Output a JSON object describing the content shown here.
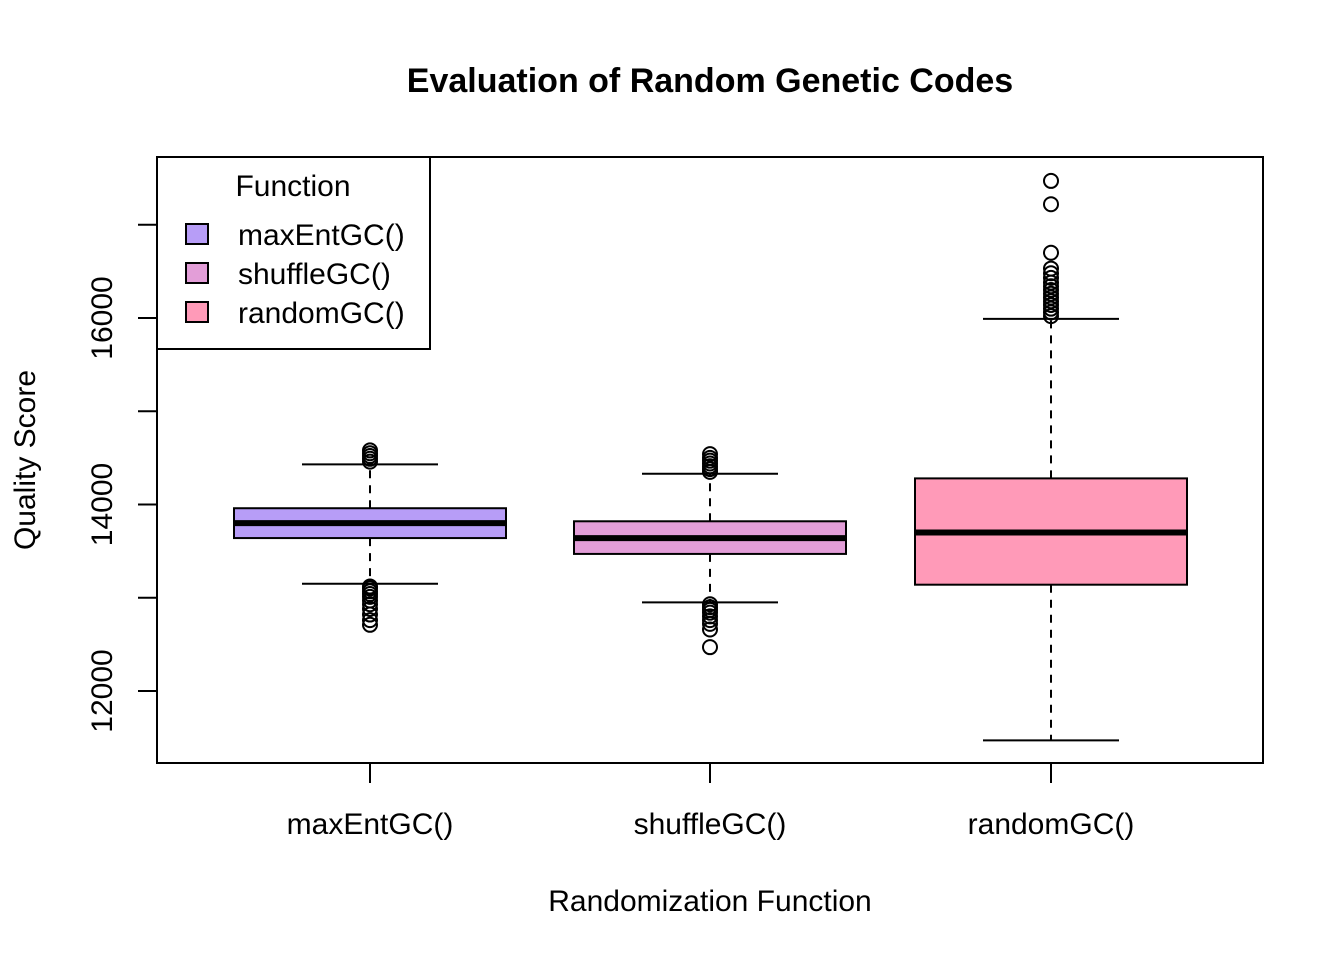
{
  "chart_data": {
    "type": "box",
    "title": "Evaluation of Random Genetic Codes",
    "xlabel": "Randomization Function",
    "ylabel": "Quality Score",
    "categories": [
      "maxEntGC()",
      "shuffleGC()",
      "randomGC()"
    ],
    "y_ticks": [
      12000,
      14000,
      16000
    ],
    "y_tick_labels": [
      "12000",
      "14000",
      "16000"
    ],
    "ylim": [
      11300,
      16800
    ],
    "grid": false,
    "legend": {
      "title": "Function",
      "placement": "top-left",
      "entries": [
        "maxEntGC()",
        "shuffleGC()",
        "randomGC()"
      ]
    },
    "series": [
      {
        "name": "maxEntGC()",
        "color": "#b79df7",
        "stats": {
          "whisker_low": 13150,
          "q1": 13640,
          "median": 13800,
          "q3": 13960,
          "whisker_high": 14430
        },
        "outliers": [
          12710,
          12760,
          12820,
          12880,
          12930,
          12970,
          13010,
          13040,
          13070,
          13100,
          13120,
          14460,
          14490,
          14520,
          14550,
          14580
        ]
      },
      {
        "name": "shuffleGC()",
        "color": "#e39ed8",
        "stats": {
          "whisker_low": 12950,
          "q1": 13470,
          "median": 13640,
          "q3": 13820,
          "whisker_high": 14330
        },
        "outliers": [
          12470,
          12660,
          12720,
          12760,
          12800,
          12840,
          12870,
          12900,
          12930,
          14350,
          14380,
          14410,
          14440,
          14470,
          14500,
          14540
        ]
      },
      {
        "name": "randomGC()",
        "color": "#ff9ab8",
        "stats": {
          "whisker_low": 11470,
          "q1": 13140,
          "median": 13700,
          "q3": 14280,
          "whisker_high": 15990
        },
        "outliers": [
          16020,
          16060,
          16100,
          16140,
          16180,
          16220,
          16260,
          16300,
          16340,
          16380,
          16430,
          16480,
          16530,
          16700,
          17220,
          17470
        ]
      }
    ]
  }
}
